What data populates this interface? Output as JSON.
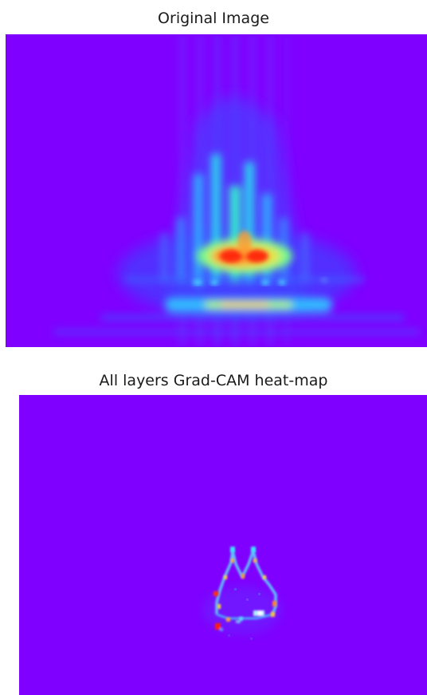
{
  "panels": {
    "original": {
      "title": "Original Image"
    },
    "gradcam": {
      "title": "All layers Grad-CAM heat-map"
    }
  },
  "colors": {
    "background_violet": "#7f00ff",
    "blue": "#3a4dfc",
    "cyan": "#2cf0d8",
    "green": "#7cfc8a",
    "yellow": "#e8e04a",
    "orange": "#ff8a2a",
    "red": "#ff1a08"
  }
}
